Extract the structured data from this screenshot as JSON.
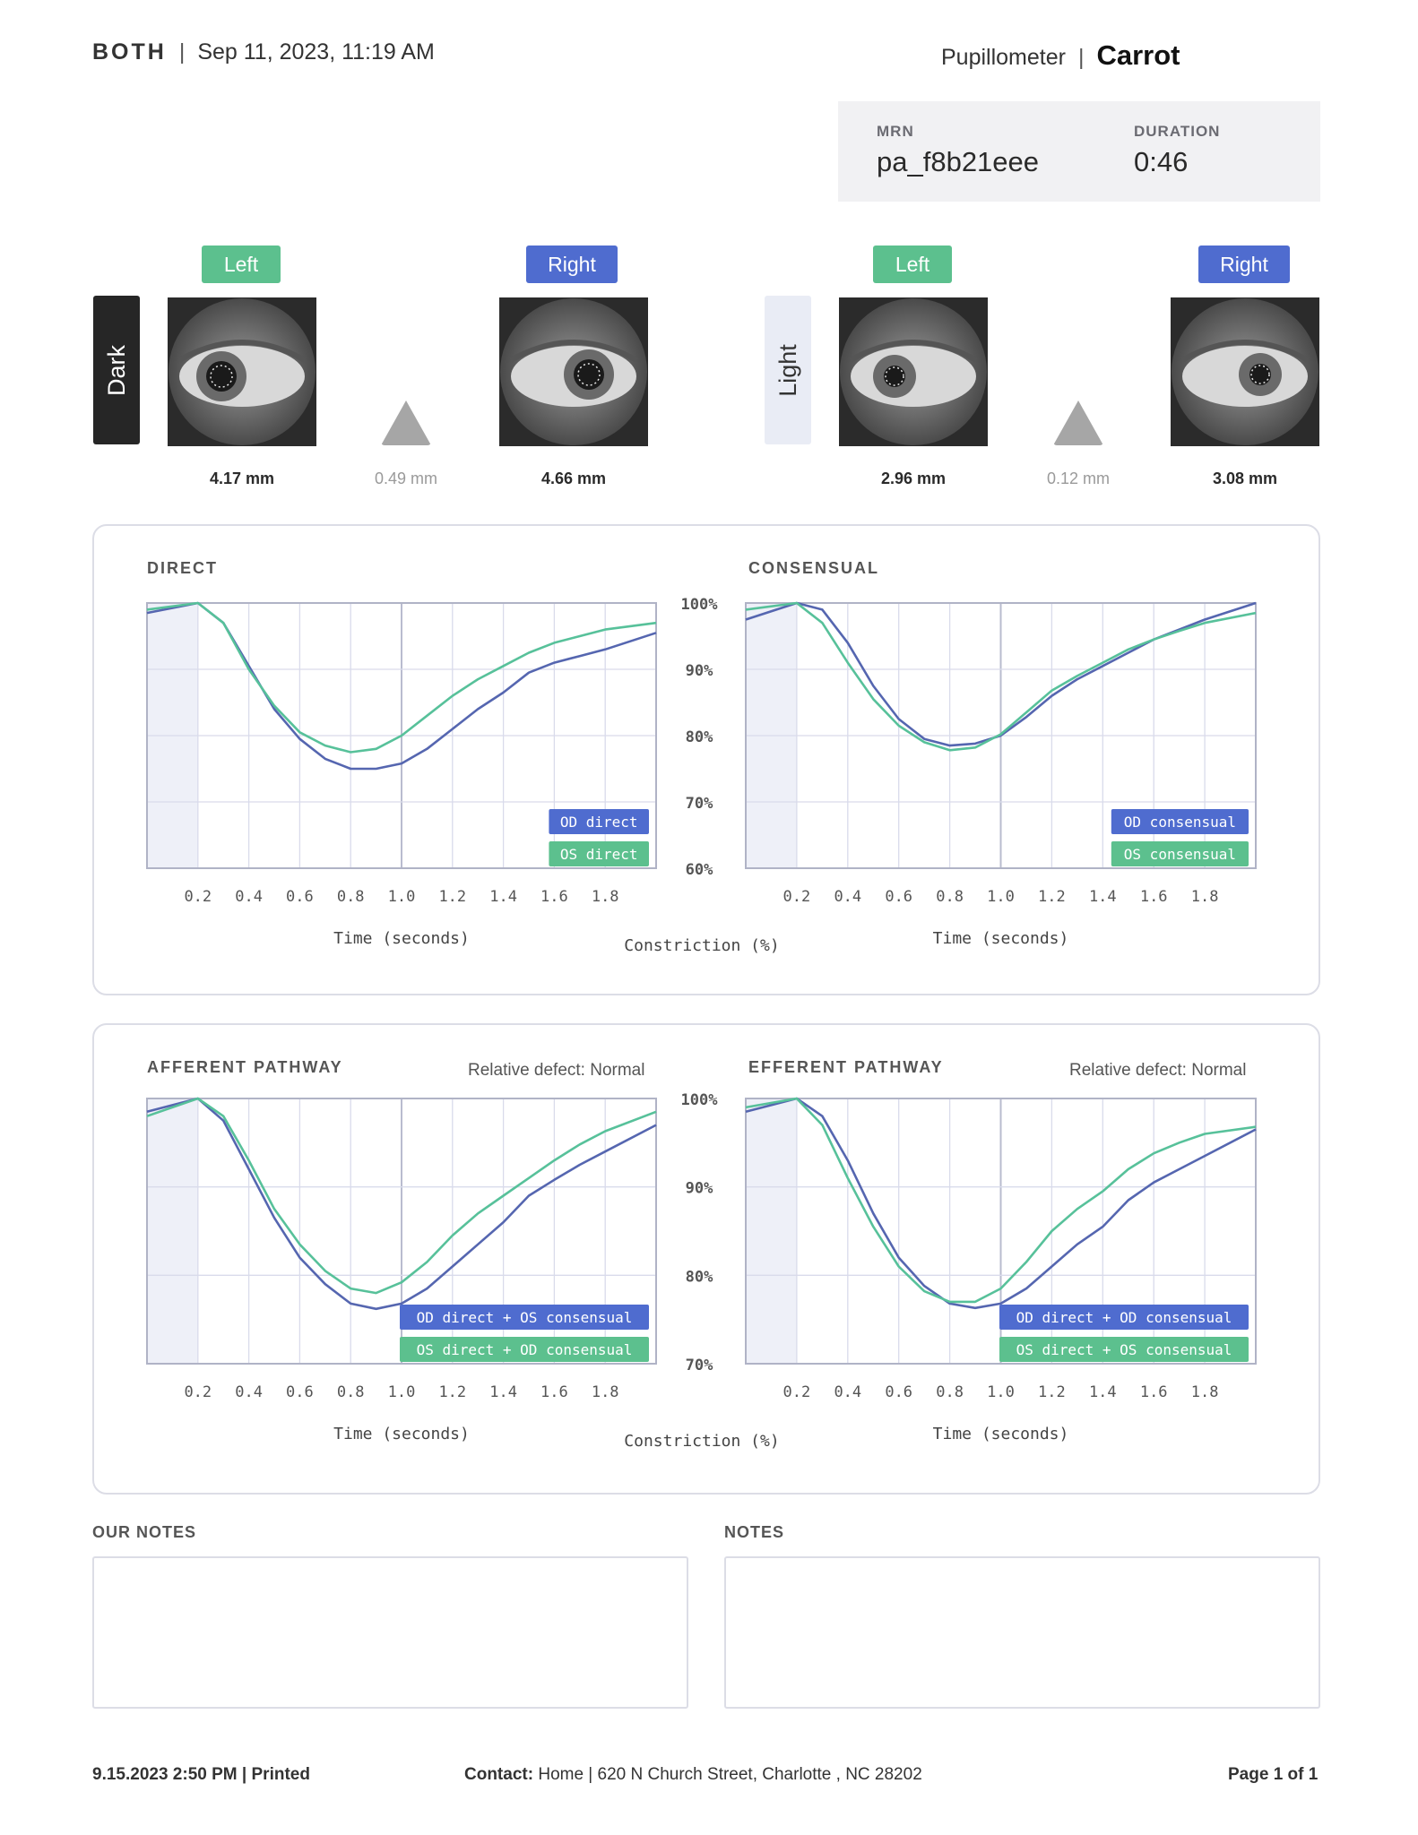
{
  "header": {
    "eye_mode": "BOTH",
    "separator": "|",
    "datetime": "Sep 11, 2023, 11:19 AM",
    "device": "Pupillometer",
    "brand": "Carrot"
  },
  "info": {
    "mrn_label": "MRN",
    "mrn_value": "pa_f8b21eee",
    "duration_label": "DURATION",
    "duration_value": "0:46"
  },
  "conditions": [
    {
      "label": "Dark",
      "left_tag": "Left",
      "right_tag": "Right",
      "left_size": "4.17 mm",
      "diff": "0.49 mm",
      "right_size": "4.66 mm"
    },
    {
      "label": "Light",
      "left_tag": "Left",
      "right_tag": "Right",
      "left_size": "2.96 mm",
      "diff": "0.12 mm",
      "right_size": "3.08 mm"
    }
  ],
  "colors": {
    "od": "#4f6ccf",
    "os": "#5cc08e",
    "od_line": "#5566b0",
    "os_line": "#57c19a",
    "grid": "#d9dbeb",
    "shade": "#eef0f8"
  },
  "icons": [
    "eye-photo-icon",
    "triangle-difference-icon"
  ],
  "chart_data": [
    {
      "type": "line",
      "title": "DIRECT",
      "xlabel": "Time (seconds)",
      "ylabel": "Constriction (%)",
      "x_ticks": [
        "0.2",
        "0.4",
        "0.6",
        "0.8",
        "1.0",
        "1.2",
        "1.4",
        "1.6",
        "1.8"
      ],
      "y_ticks": [
        "100%",
        "90%",
        "80%",
        "70%",
        "60%"
      ],
      "xlim": [
        0,
        2.0
      ],
      "ylim": [
        60,
        100
      ],
      "series": [
        {
          "name": "OD direct",
          "x": [
            0,
            0.2,
            0.3,
            0.4,
            0.5,
            0.6,
            0.7,
            0.8,
            0.9,
            1.0,
            1.1,
            1.2,
            1.3,
            1.4,
            1.5,
            1.6,
            1.7,
            1.8,
            2.0
          ],
          "y": [
            98.5,
            100,
            97,
            90.5,
            84,
            79.5,
            76.5,
            75,
            75,
            75.8,
            78,
            81,
            84,
            86.5,
            89.5,
            91,
            92,
            93,
            95.5
          ]
        },
        {
          "name": "OS direct",
          "x": [
            0,
            0.2,
            0.3,
            0.4,
            0.5,
            0.6,
            0.7,
            0.8,
            0.9,
            1.0,
            1.1,
            1.2,
            1.3,
            1.4,
            1.5,
            1.6,
            1.7,
            1.8,
            2.0
          ],
          "y": [
            99,
            100,
            97,
            90,
            84.5,
            80.5,
            78.5,
            77.5,
            78,
            80,
            83,
            86,
            88.5,
            90.5,
            92.5,
            94,
            95,
            96,
            97
          ]
        }
      ]
    },
    {
      "type": "line",
      "title": "CONSENSUAL",
      "xlabel": "Time (seconds)",
      "x_ticks": [
        "0.2",
        "0.4",
        "0.6",
        "0.8",
        "1.0",
        "1.2",
        "1.4",
        "1.6",
        "1.8"
      ],
      "xlim": [
        0,
        2.0
      ],
      "ylim": [
        60,
        100
      ],
      "series": [
        {
          "name": "OD consensual",
          "x": [
            0,
            0.2,
            0.3,
            0.4,
            0.5,
            0.6,
            0.7,
            0.8,
            0.9,
            1.0,
            1.1,
            1.2,
            1.3,
            1.4,
            1.5,
            1.6,
            1.7,
            1.8,
            2.0
          ],
          "y": [
            97.5,
            100,
            99,
            94,
            87.5,
            82.5,
            79.5,
            78.5,
            78.8,
            80,
            82.8,
            86,
            88.5,
            90.5,
            92.5,
            94.5,
            96,
            97.5,
            100
          ]
        },
        {
          "name": "OS consensual",
          "x": [
            0,
            0.2,
            0.3,
            0.4,
            0.5,
            0.6,
            0.7,
            0.8,
            0.9,
            1.0,
            1.1,
            1.2,
            1.3,
            1.4,
            1.5,
            1.6,
            1.7,
            1.8,
            2.0
          ],
          "y": [
            99,
            100,
            97,
            91,
            85.5,
            81.5,
            79,
            77.8,
            78.2,
            80.2,
            83.5,
            86.8,
            89,
            91,
            93,
            94.5,
            95.8,
            97,
            98.5
          ]
        }
      ]
    },
    {
      "type": "line",
      "title": "AFFERENT PATHWAY",
      "annotation": "Relative defect: Normal",
      "xlabel": "Time (seconds)",
      "ylabel": "Constriction (%)",
      "x_ticks": [
        "0.2",
        "0.4",
        "0.6",
        "0.8",
        "1.0",
        "1.2",
        "1.4",
        "1.6",
        "1.8"
      ],
      "y_ticks": [
        "100%",
        "90%",
        "80%",
        "70%"
      ],
      "xlim": [
        0,
        2.0
      ],
      "ylim": [
        70,
        100
      ],
      "series": [
        {
          "name": "OD direct + OS consensual",
          "x": [
            0,
            0.2,
            0.3,
            0.4,
            0.5,
            0.6,
            0.7,
            0.8,
            0.9,
            1.0,
            1.1,
            1.2,
            1.3,
            1.4,
            1.5,
            1.6,
            1.7,
            1.8,
            2.0
          ],
          "y": [
            98.5,
            100,
            97.5,
            92,
            86.5,
            82,
            79,
            76.8,
            76.2,
            76.8,
            78.5,
            81,
            83.5,
            86,
            89,
            90.8,
            92.5,
            94,
            97
          ]
        },
        {
          "name": "OS direct + OD consensual",
          "x": [
            0,
            0.2,
            0.3,
            0.4,
            0.5,
            0.6,
            0.7,
            0.8,
            0.9,
            1.0,
            1.1,
            1.2,
            1.3,
            1.4,
            1.5,
            1.6,
            1.7,
            1.8,
            2.0
          ],
          "y": [
            98,
            100,
            98,
            93,
            87.5,
            83.5,
            80.5,
            78.5,
            78,
            79.2,
            81.5,
            84.5,
            87,
            89,
            91,
            93,
            94.8,
            96.3,
            98.5
          ]
        }
      ]
    },
    {
      "type": "line",
      "title": "EFFERENT PATHWAY",
      "annotation": "Relative defect: Normal",
      "xlabel": "Time (seconds)",
      "x_ticks": [
        "0.2",
        "0.4",
        "0.6",
        "0.8",
        "1.0",
        "1.2",
        "1.4",
        "1.6",
        "1.8"
      ],
      "xlim": [
        0,
        2.0
      ],
      "ylim": [
        70,
        100
      ],
      "series": [
        {
          "name": "OD direct + OD consensual",
          "x": [
            0,
            0.2,
            0.3,
            0.4,
            0.5,
            0.6,
            0.7,
            0.8,
            0.9,
            1.0,
            1.1,
            1.2,
            1.3,
            1.4,
            1.5,
            1.6,
            1.7,
            1.8,
            2.0
          ],
          "y": [
            98.5,
            100,
            98,
            93,
            87,
            82,
            78.8,
            76.8,
            76.3,
            76.8,
            78.5,
            81,
            83.5,
            85.5,
            88.5,
            90.5,
            92,
            93.5,
            96.5
          ]
        },
        {
          "name": "OS direct + OS consensual",
          "x": [
            0,
            0.2,
            0.3,
            0.4,
            0.5,
            0.6,
            0.7,
            0.8,
            0.9,
            1.0,
            1.1,
            1.2,
            1.3,
            1.4,
            1.5,
            1.6,
            1.7,
            1.8,
            2.0
          ],
          "y": [
            99,
            100,
            97,
            91,
            85.5,
            81,
            78.2,
            77,
            77,
            78.5,
            81.5,
            85,
            87.5,
            89.5,
            92,
            93.8,
            95,
            96,
            96.8
          ]
        }
      ]
    }
  ],
  "notes": {
    "our_notes_label": "OUR NOTES",
    "notes_label": "NOTES"
  },
  "footer": {
    "printed_datetime": "9.15.2023  2:50 PM | ",
    "printed_label": "Printed",
    "contact_label": "Contact:",
    "contact_value": " Home | 620 N Church Street, Charlotte , NC 28202",
    "page": "Page 1 of 1"
  }
}
